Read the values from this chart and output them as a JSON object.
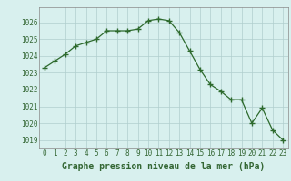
{
  "x": [
    0,
    1,
    2,
    3,
    4,
    5,
    6,
    7,
    8,
    9,
    10,
    11,
    12,
    13,
    14,
    15,
    16,
    17,
    18,
    19,
    20,
    21,
    22,
    23
  ],
  "y": [
    1023.3,
    1023.7,
    1024.1,
    1024.6,
    1024.8,
    1025.0,
    1025.5,
    1025.5,
    1025.5,
    1025.6,
    1026.1,
    1026.2,
    1026.1,
    1025.4,
    1024.3,
    1023.2,
    1022.3,
    1021.9,
    1021.4,
    1021.4,
    1020.0,
    1020.9,
    1019.6,
    1019.0
  ],
  "line_color": "#2d6a2d",
  "marker": "+",
  "marker_size": 4,
  "marker_linewidth": 1.0,
  "linewidth": 0.9,
  "background_color": "#d8f0ee",
  "grid_color": "#b0cece",
  "xlabel": "Graphe pression niveau de la mer (hPa)",
  "xlabel_fontsize": 7,
  "yticks": [
    1019,
    1020,
    1021,
    1022,
    1023,
    1024,
    1025,
    1026
  ],
  "xticks": [
    0,
    1,
    2,
    3,
    4,
    5,
    6,
    7,
    8,
    9,
    10,
    11,
    12,
    13,
    14,
    15,
    16,
    17,
    18,
    19,
    20,
    21,
    22,
    23
  ],
  "ylim": [
    1018.5,
    1026.9
  ],
  "xlim": [
    -0.5,
    23.5
  ],
  "tick_fontsize": 5.5,
  "axis_color": "#336633",
  "spine_color": "#888888"
}
